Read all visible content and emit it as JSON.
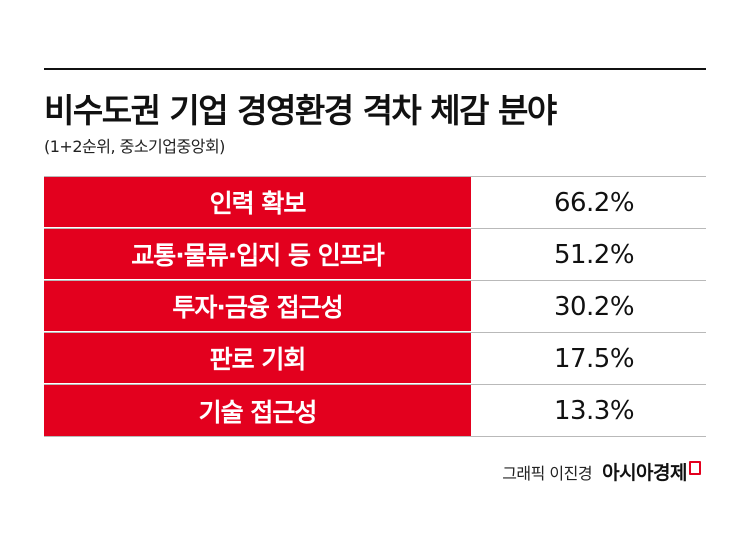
{
  "title": "비수도권 기업 경영환경 격차 체감 분야",
  "subtitle": "(1+2순위, 중소기업중앙회)",
  "colors": {
    "accent": "#e3001e",
    "text": "#111111"
  },
  "chart_data": {
    "type": "table",
    "title": "비수도권 기업 경영환경 격차 체감 분야",
    "subtitle": "(1+2순위, 중소기업중앙회)",
    "categories": [
      "인력 확보",
      "교통·물류·입지 등 인프라",
      "투자·금융 접근성",
      "판로 기회",
      "기술 접근성"
    ],
    "values": [
      66.2,
      51.2,
      30.2,
      17.5,
      13.3
    ],
    "unit": "%",
    "rows": [
      {
        "label": "인력 확보",
        "value": "66.2%"
      },
      {
        "label": "교통·물류·입지 등 인프라",
        "value": "51.2%"
      },
      {
        "label": "투자·금융 접근성",
        "value": "30.2%"
      },
      {
        "label": "판로 기회",
        "value": "17.5%"
      },
      {
        "label": "기술 접근성",
        "value": "13.3%"
      }
    ]
  },
  "footer": {
    "credit": "그래픽 이진경",
    "brand": "아시아경제"
  }
}
